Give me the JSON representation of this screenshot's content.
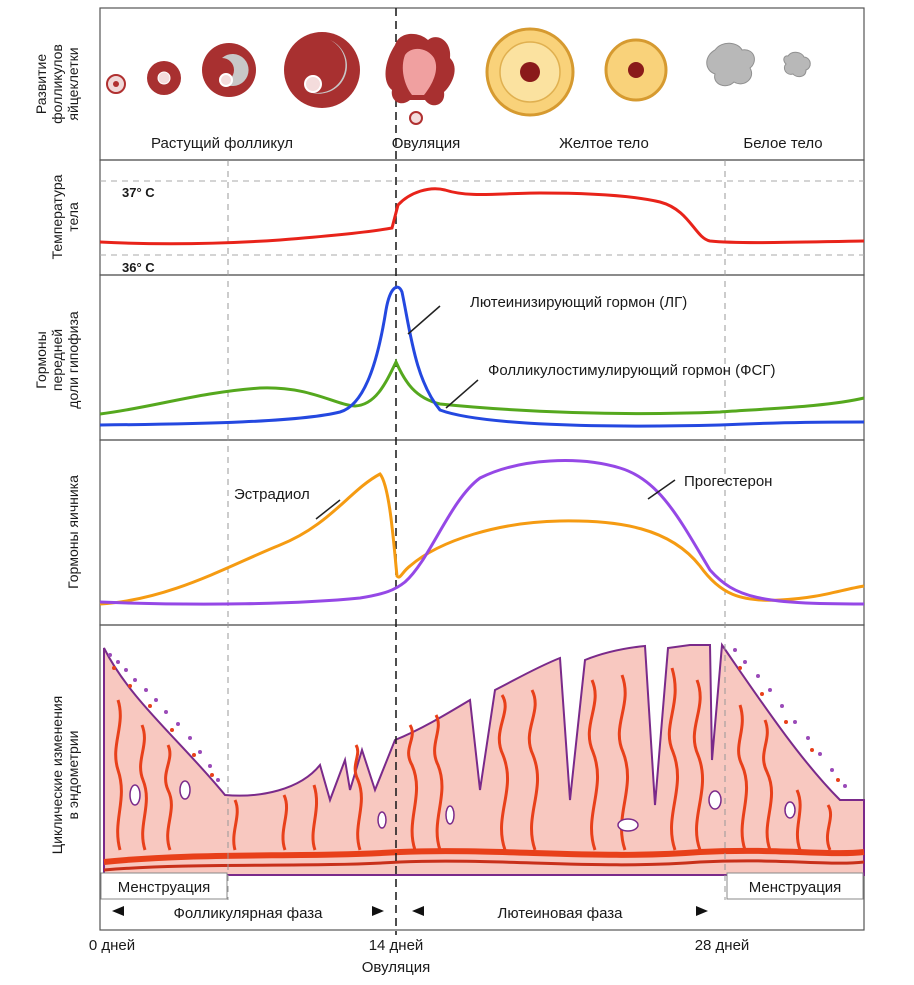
{
  "rows": {
    "follicles": {
      "ylabel": [
        "Развитие",
        "фолликулов",
        "яйцеклетки"
      ],
      "captions": [
        "Растущий фолликул",
        "Овуляция",
        "Желтое тело",
        "Белое тело"
      ]
    },
    "temperature": {
      "ylabel": [
        "Температура",
        "тела"
      ],
      "high": "37° C",
      "low": "36° C"
    },
    "pituitary": {
      "ylabel": [
        "Гормоны",
        "передней",
        "доли гипофиза"
      ],
      "lh_label": "Лютеинизирующий гормон (ЛГ)",
      "fsh_label": "Фолликулостимулирующий гормон (ФСГ)"
    },
    "ovary": {
      "ylabel": [
        "Гормоны яичника"
      ],
      "estradiol_label": "Эстрадиол",
      "progesterone_label": "Прогестерон"
    },
    "endometrium": {
      "ylabel": [
        "Циклические изменения",
        "в эндометрии"
      ],
      "menstruation_left": "Менструация",
      "menstruation_right": "Менструация"
    }
  },
  "phases": {
    "follicular": "Фолликулярная фаза",
    "luteal": "Лютеиновая фаза"
  },
  "axis": {
    "day0": "0 дней",
    "day14": "14 дней",
    "day28": "28 дней",
    "ovulation": "Овуляция"
  },
  "colors": {
    "temperature": "#e8231a",
    "lh": "#2448e0",
    "fsh": "#55a81e",
    "estradiol": "#f59b12",
    "progesterone": "#9548e6",
    "endometrium_fill": "#f8c8c0",
    "endometrium_outline": "#7a2a8a",
    "vessel": "#e8401a"
  }
}
